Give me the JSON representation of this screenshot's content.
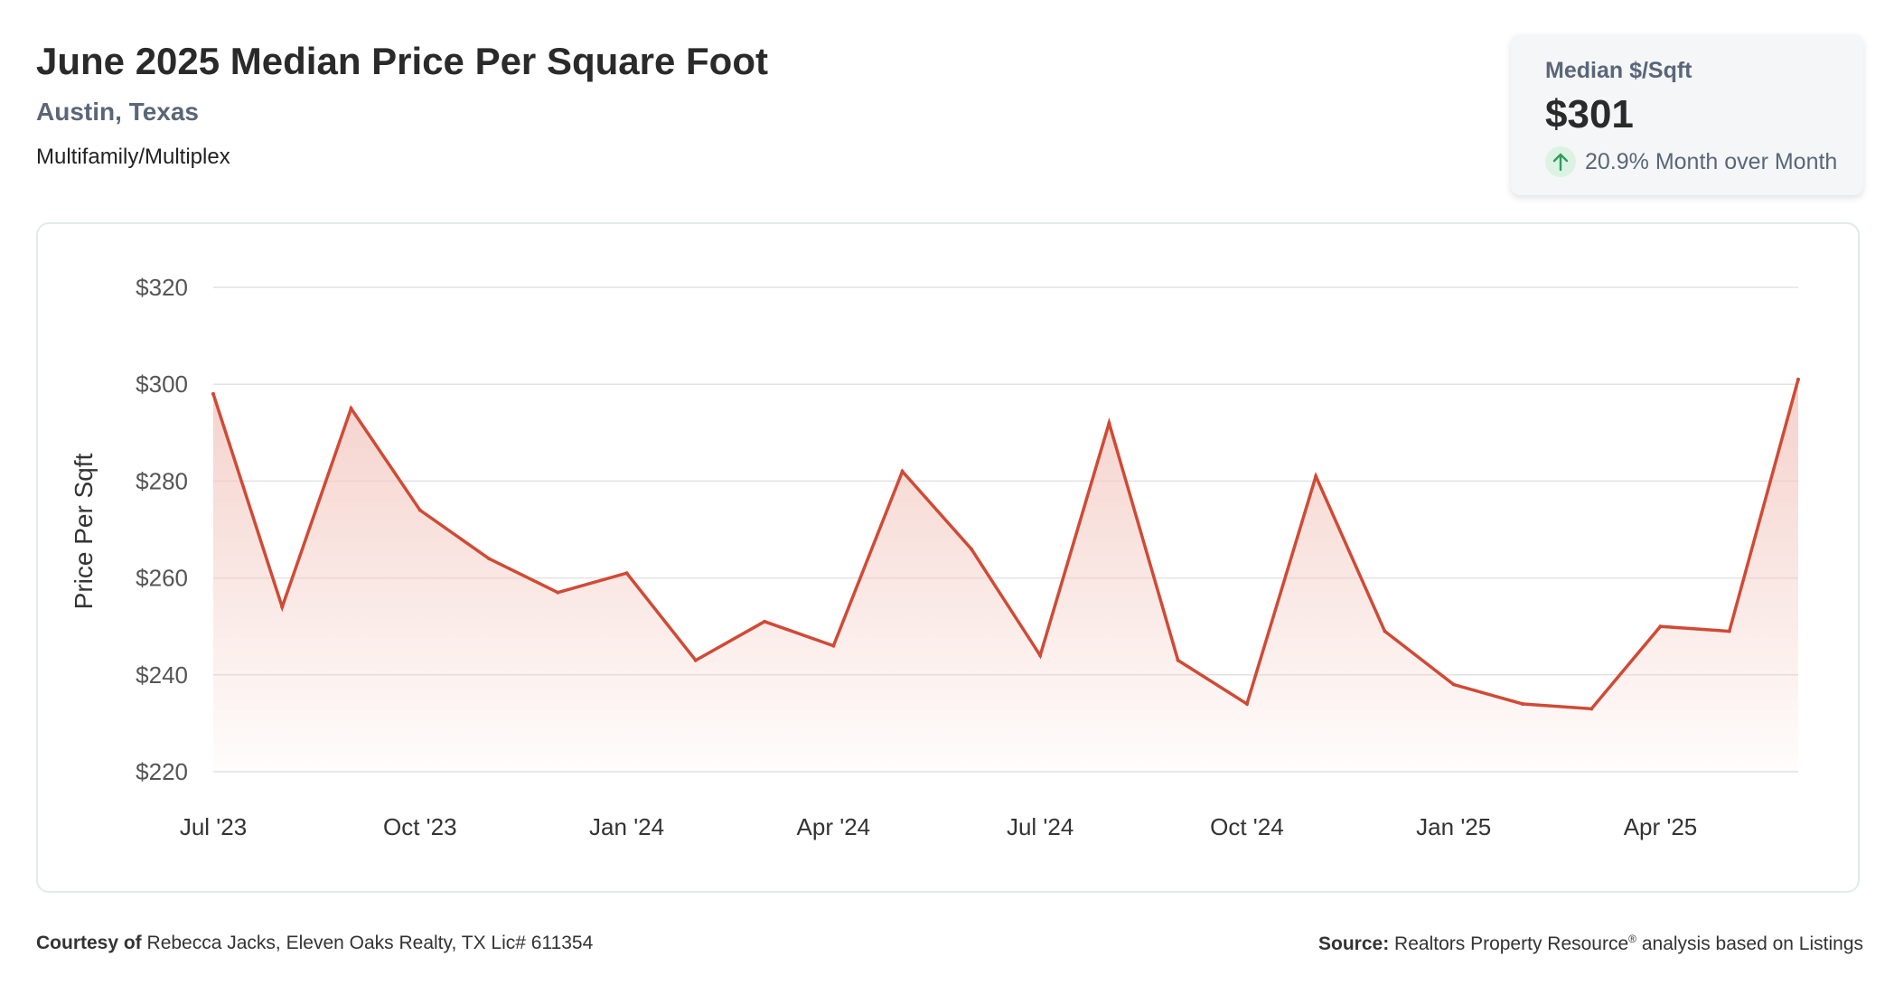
{
  "header": {
    "title": "June 2025 Median Price Per Square Foot",
    "location": "Austin, Texas",
    "property_type": "Multifamily/Multiplex"
  },
  "stat_card": {
    "label": "Median $/Sqft",
    "value": "$301",
    "change_text": "20.9% Month over Month",
    "change_icon": "arrow-up-icon"
  },
  "colors": {
    "line": "#d04a35",
    "fill": "#f3c9c1",
    "grid": "#e2e2e2",
    "card_bg": "#f4f6f8",
    "positive": "#2e9e5b"
  },
  "chart_data": {
    "type": "area",
    "ylabel": "Price Per Sqft",
    "ylim": [
      220,
      320
    ],
    "y_ticks": [
      {
        "value": 220,
        "label": "$220"
      },
      {
        "value": 240,
        "label": "$240"
      },
      {
        "value": 260,
        "label": "$260"
      },
      {
        "value": 280,
        "label": "$280"
      },
      {
        "value": 300,
        "label": "$300"
      },
      {
        "value": 320,
        "label": "$320"
      }
    ],
    "x_ticks": [
      {
        "index": 0,
        "label": "Jul '23"
      },
      {
        "index": 3,
        "label": "Oct '23"
      },
      {
        "index": 6,
        "label": "Jan '24"
      },
      {
        "index": 9,
        "label": "Apr '24"
      },
      {
        "index": 12,
        "label": "Jul '24"
      },
      {
        "index": 15,
        "label": "Oct '24"
      },
      {
        "index": 18,
        "label": "Jan '25"
      },
      {
        "index": 21,
        "label": "Apr '25"
      }
    ],
    "grid": true,
    "series": [
      {
        "x": [
          "2023-07",
          "2023-08",
          "2023-09",
          "2023-10",
          "2023-11",
          "2023-12",
          "2024-01",
          "2024-02",
          "2024-03",
          "2024-04",
          "2024-05",
          "2024-06",
          "2024-07",
          "2024-08",
          "2024-09",
          "2024-10",
          "2024-11",
          "2024-12",
          "2025-01",
          "2025-02",
          "2025-03",
          "2025-04",
          "2025-05",
          "2025-06"
        ],
        "values": [
          298,
          254,
          295,
          274,
          264,
          257,
          261,
          243,
          251,
          246,
          282,
          266,
          244,
          292,
          243,
          234,
          281,
          249,
          238,
          234,
          233,
          250,
          249,
          301
        ]
      }
    ]
  },
  "footer": {
    "courtesy_label": "Courtesy of",
    "courtesy_text": "Rebecca Jacks, Eleven Oaks Realty, TX Lic# 611354",
    "source_label": "Source:",
    "source_text_1": "Realtors Property Resource",
    "source_sup": "®",
    "source_text_2": "analysis based on Listings"
  }
}
